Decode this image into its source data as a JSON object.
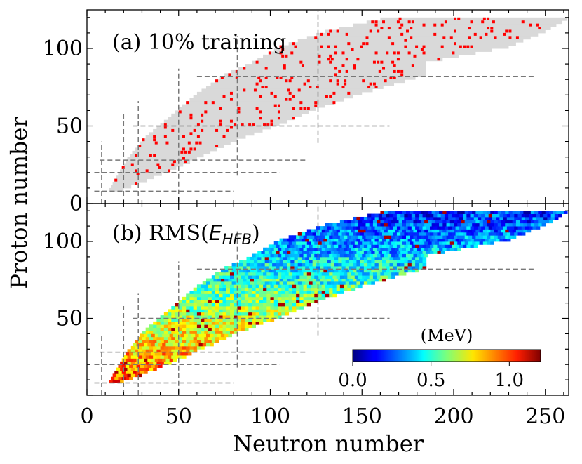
{
  "chart_data": {
    "type": "heatmap",
    "xlabel": "Neutron number",
    "ylabel": "Proton number",
    "xlim": [
      0,
      265
    ],
    "xticks": [
      0,
      50,
      100,
      150,
      200,
      250
    ],
    "magic_numbers": {
      "neutron_lines": [
        8,
        20,
        28,
        50,
        82,
        126
      ],
      "proton_lines": [
        8,
        20,
        28,
        50,
        82
      ]
    },
    "chart_region": {
      "neutron_range_by_proton": [
        [
          8,
          12,
          20
        ],
        [
          20,
          18,
          45
        ],
        [
          28,
          22,
          60
        ],
        [
          40,
          30,
          82
        ],
        [
          50,
          40,
          105
        ],
        [
          60,
          50,
          125
        ],
        [
          70,
          60,
          150
        ],
        [
          82,
          75,
          185
        ],
        [
          90,
          90,
          185
        ],
        [
          100,
          105,
          230
        ],
        [
          110,
          130,
          250
        ],
        [
          118,
          160,
          262
        ]
      ]
    },
    "panels": [
      {
        "id": "a",
        "label_prefix": "(a) ",
        "label_text": "10% training",
        "ylim": [
          0,
          124
        ],
        "yticks": [
          0,
          50,
          100
        ],
        "region_color": "#d9d9d9",
        "training_color": "#ff0000",
        "training_fraction_percent": 10
      },
      {
        "id": "b",
        "label_prefix": "(b) RMS(",
        "label_math": "E",
        "label_sub": "HFB",
        "label_suffix": ")",
        "ylim": [
          0,
          124
        ],
        "yticks": [
          50,
          100
        ],
        "colorbar": {
          "label": "(MeV)",
          "range": [
            0,
            1.2
          ],
          "ticks": [
            "0.0",
            "0.5",
            "1.0"
          ],
          "colormap": "jet"
        }
      }
    ]
  }
}
